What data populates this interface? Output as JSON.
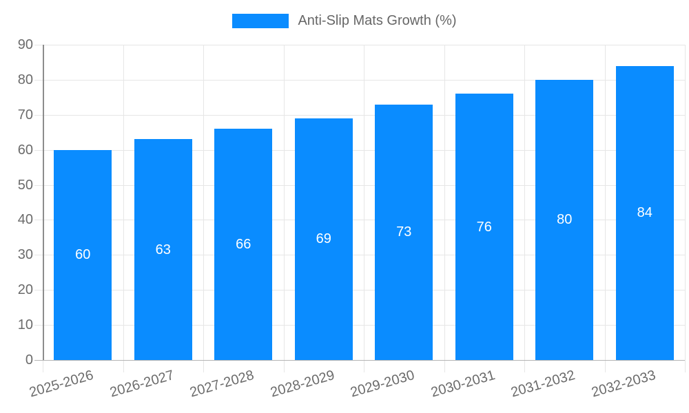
{
  "legend": {
    "label": "Anti-Slip Mats Growth (%)"
  },
  "colors": {
    "bar": "#0a8cff",
    "grid": "#e6e6e6",
    "y_axis": "#8c8c8c",
    "x_axis": "#b3b3b3",
    "tick_text": "#6b6b6b",
    "legend_text": "#666666",
    "value_label_text": "#ffffff",
    "background": "#ffffff"
  },
  "chart_data": {
    "type": "bar",
    "title": "Anti-Slip Mats Growth (%)",
    "categories": [
      "2025-2026",
      "2026-2027",
      "2027-2028",
      "2028-2029",
      "2029-2030",
      "2030-2031",
      "2031-2032",
      "2032-2033"
    ],
    "values": [
      60,
      63,
      66,
      69,
      73,
      76,
      80,
      84
    ],
    "value_labels": [
      "60",
      "63",
      "66",
      "69",
      "73",
      "76",
      "80",
      "84"
    ],
    "y_ticks": [
      "0",
      "10",
      "20",
      "30",
      "40",
      "50",
      "60",
      "70",
      "80",
      "90"
    ],
    "xlabel": "",
    "ylabel": "",
    "ylim": [
      0,
      90
    ],
    "ytick_step": 10,
    "grid": true,
    "legend_position": "top",
    "legend_entries": [
      "Anti-Slip Mats Growth (%)"
    ],
    "bar_color": "#0a8cff"
  }
}
